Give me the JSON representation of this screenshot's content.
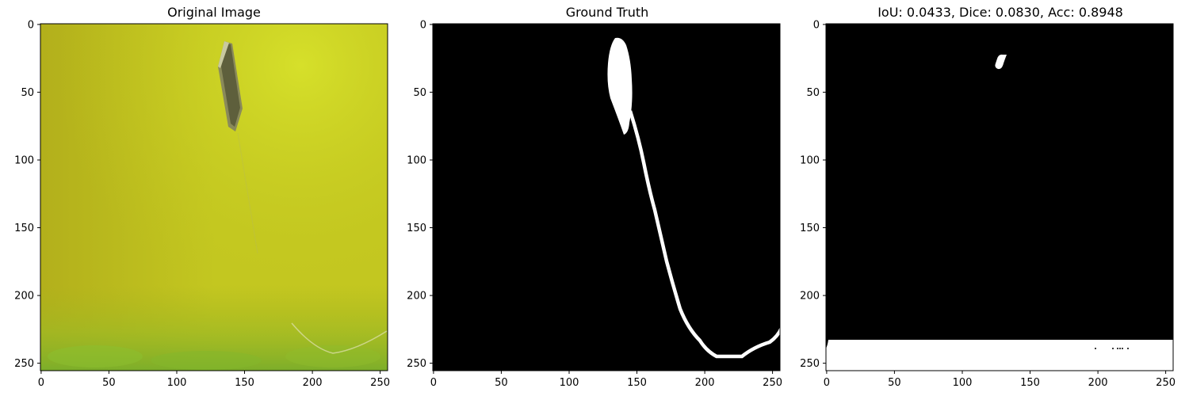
{
  "panels": [
    {
      "title": "Original Image",
      "content": "photo",
      "x_ticks": [
        "0",
        "50",
        "100",
        "150",
        "200",
        "250"
      ],
      "y_ticks": [
        "0",
        "50",
        "100",
        "150",
        "200",
        "250"
      ]
    },
    {
      "title": "Ground Truth",
      "content": "mask",
      "x_ticks": [
        "0",
        "50",
        "100",
        "150",
        "200",
        "250"
      ],
      "y_ticks": [
        "0",
        "50",
        "100",
        "150",
        "200",
        "250"
      ]
    },
    {
      "title": "IoU: 0.0433, Dice: 0.0830, Acc: 0.8948",
      "content": "prediction",
      "x_ticks": [
        "0",
        "50",
        "100",
        "150",
        "200",
        "250"
      ],
      "y_ticks": [
        "0",
        "50",
        "100",
        "150",
        "200",
        "250"
      ]
    }
  ],
  "image_extent": [
    0,
    256
  ],
  "colors": {
    "photo_base": "#c4cc22",
    "photo_bright": "#d6e02a",
    "photo_bottom": "#88b428",
    "mask_background": "#000000",
    "mask_foreground": "#ffffff"
  }
}
